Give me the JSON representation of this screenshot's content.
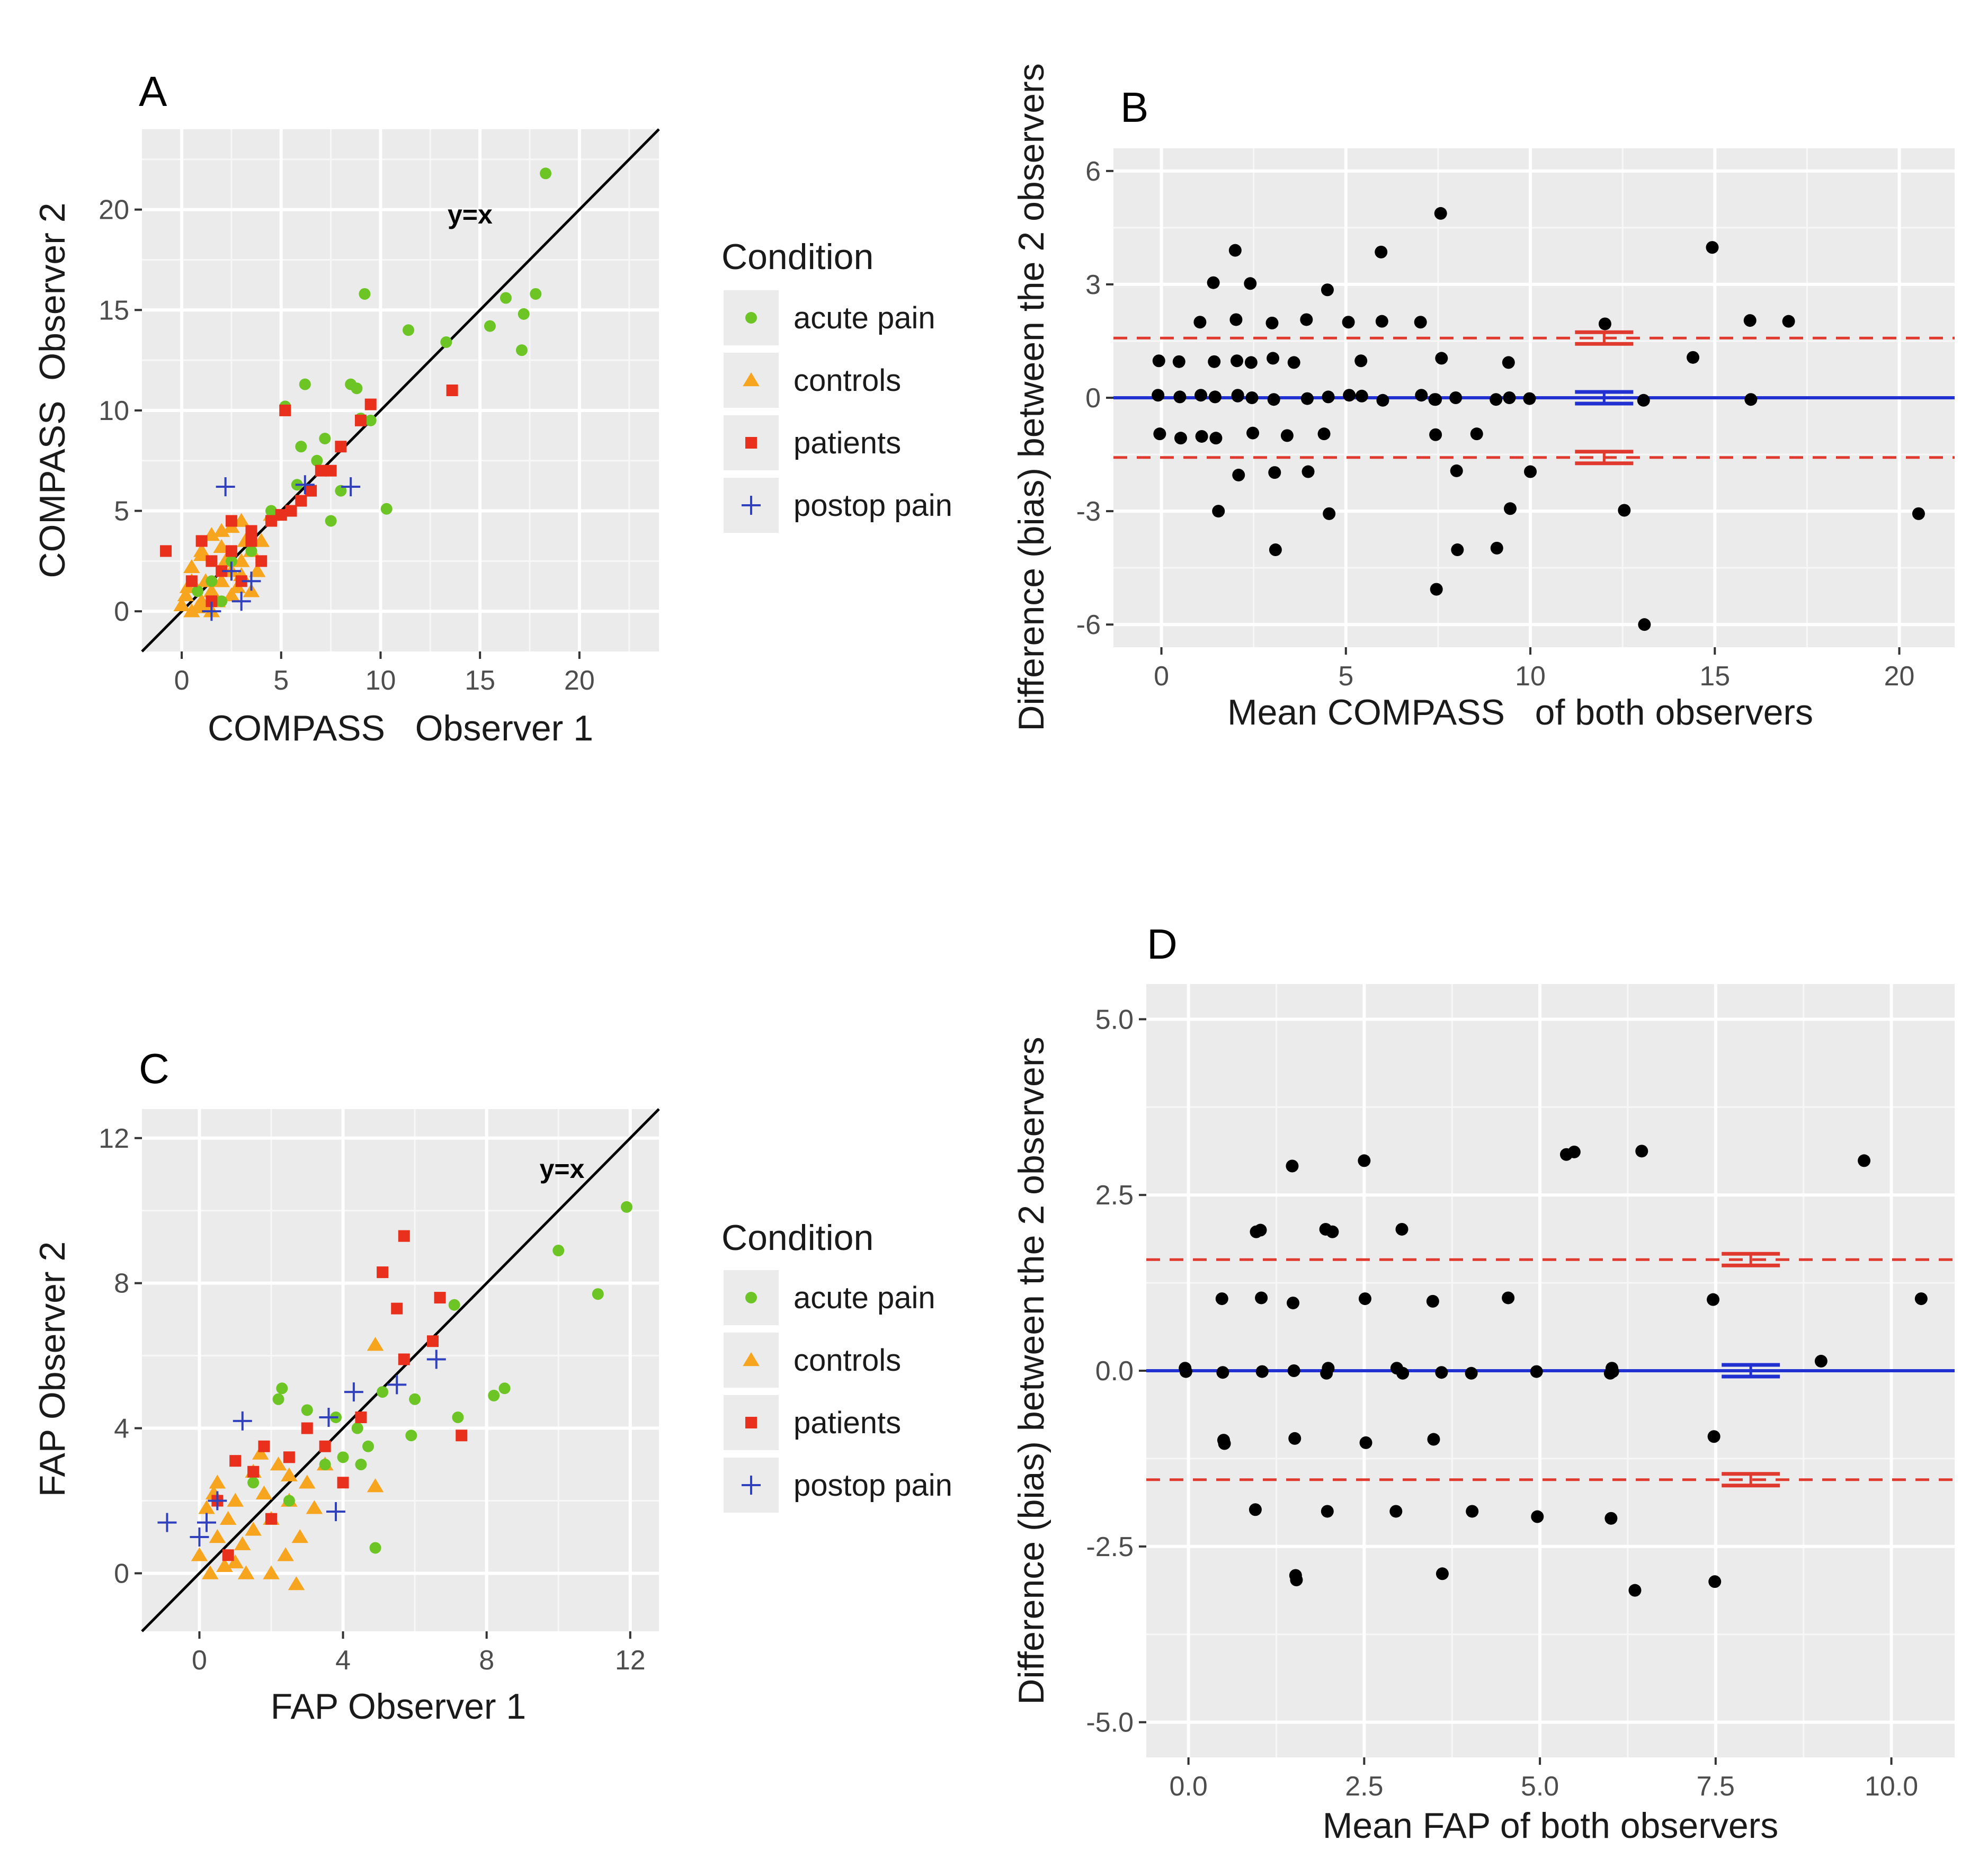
{
  "colors": {
    "acute_pain": "#6cc524",
    "controls": "#f7a51f",
    "patients": "#e8301c",
    "postop_pain": "#3140bd",
    "bias_line": "#2130d0",
    "loa_line": "#e03a2e",
    "panel_bg": "#ebebeb",
    "grid": "#ffffff"
  },
  "legend_top": {
    "title": "Condition",
    "items": [
      {
        "label": "acute pain",
        "key": "acute_pain",
        "icon": "circle-marker-icon"
      },
      {
        "label": "controls",
        "key": "controls",
        "icon": "triangle-marker-icon"
      },
      {
        "label": "patients",
        "key": "patients",
        "icon": "square-marker-icon"
      },
      {
        "label": "postop pain",
        "key": "postop_pain",
        "icon": "plus-marker-icon"
      }
    ]
  },
  "legend_bottom": {
    "title": "Condition",
    "items": [
      {
        "label": "acute pain",
        "key": "acute_pain",
        "icon": "circle-marker-icon"
      },
      {
        "label": "controls",
        "key": "controls",
        "icon": "triangle-marker-icon"
      },
      {
        "label": "patients",
        "key": "patients",
        "icon": "square-marker-icon"
      },
      {
        "label": "postop pain",
        "key": "postop_pain",
        "icon": "plus-marker-icon"
      }
    ]
  },
  "chart_data": [
    {
      "id": "A",
      "type": "scatter",
      "letter": "A",
      "xlabel": "COMPASS   Observer 1",
      "ylabel": "COMPASS  Observer 2",
      "xlim": [
        -2,
        24
      ],
      "ylim": [
        -2,
        24
      ],
      "xticks": [
        0,
        5,
        10,
        15,
        20
      ],
      "xtick_labels": [
        "0",
        "5",
        "10",
        "15",
        "20"
      ],
      "yticks": [
        0,
        5,
        10,
        15,
        20
      ],
      "ytick_labels": [
        "0",
        "5",
        "10",
        "15",
        "20"
      ],
      "identity_line": true,
      "annotation": {
        "text": "y=x",
        "x": 14.5,
        "y": 19.3
      },
      "series": [
        {
          "name": "acute pain",
          "key": "acute_pain",
          "marker": "circle",
          "x": [
            18.3,
            9.2,
            11.4,
            13.3,
            16.3,
            17.8,
            15.5,
            17.2,
            17.1,
            6.2,
            8.5,
            8.8,
            9.5,
            5.2,
            6.0,
            7.5,
            10.3,
            6.8,
            8.0,
            7.2,
            9.0,
            5.8,
            4.5,
            3.5,
            2.5,
            1.5,
            0.8,
            2.0
          ],
          "y": [
            21.8,
            15.8,
            14.0,
            13.4,
            15.6,
            15.8,
            14.2,
            14.8,
            13.0,
            11.3,
            11.3,
            11.1,
            9.5,
            10.2,
            8.2,
            4.5,
            5.1,
            7.5,
            6.0,
            8.6,
            9.6,
            6.3,
            5.0,
            3.0,
            2.5,
            1.5,
            1.0,
            0.5
          ]
        },
        {
          "name": "controls",
          "key": "controls",
          "marker": "triangle",
          "x": [
            0.5,
            1.0,
            1.5,
            2.0,
            2.5,
            3.0,
            3.5,
            4.0,
            0.2,
            0.8,
            1.2,
            1.8,
            2.2,
            2.8,
            3.2,
            3.8,
            0.0,
            0.5,
            1.0,
            1.5,
            2.0,
            2.5,
            3.0,
            1.0,
            2.0,
            3.0,
            0.5,
            1.5,
            2.5,
            3.5,
            4.5,
            0.3,
            1.3
          ],
          "y": [
            0.0,
            0.5,
            1.0,
            1.5,
            2.0,
            2.5,
            3.0,
            3.5,
            0.8,
            0.2,
            1.5,
            0.5,
            2.5,
            1.2,
            3.5,
            2.0,
            0.3,
            1.5,
            2.8,
            0.0,
            3.2,
            0.8,
            4.5,
            3.0,
            4.0,
            1.8,
            2.2,
            3.8,
            4.2,
            1.0,
            4.8,
            1.2,
            0.3
          ]
        },
        {
          "name": "patients",
          "key": "patients",
          "marker": "square",
          "x": [
            13.6,
            5.2,
            9.5,
            8.0,
            7.5,
            9.0,
            6.5,
            5.5,
            4.5,
            3.5,
            2.5,
            1.5,
            0.5,
            -0.8,
            1.0,
            2.0,
            3.0,
            4.0,
            5.0,
            6.0,
            7.0,
            2.5,
            1.5,
            3.5
          ],
          "y": [
            11.0,
            10.0,
            10.3,
            8.2,
            7.0,
            9.5,
            6.0,
            5.0,
            4.5,
            4.0,
            3.0,
            2.5,
            1.5,
            3.0,
            3.5,
            2.0,
            1.5,
            2.5,
            4.8,
            5.5,
            7.0,
            4.5,
            0.5,
            3.5
          ]
        },
        {
          "name": "postop pain",
          "key": "postop_pain",
          "marker": "plus",
          "x": [
            2.2,
            8.5,
            6.2,
            3.5,
            3.0,
            1.5,
            2.5
          ],
          "y": [
            6.2,
            6.2,
            6.3,
            1.5,
            0.5,
            0.0,
            2.0
          ]
        }
      ]
    },
    {
      "id": "B",
      "type": "scatter",
      "letter": "B",
      "xlabel": "Mean COMPASS   of both observers",
      "ylabel": "Difference (bias) between the 2 observers",
      "xlim": [
        -1.3,
        21.5
      ],
      "ylim": [
        -6.6,
        6.6
      ],
      "xticks": [
        0,
        5,
        10,
        15,
        20
      ],
      "xtick_labels": [
        "0",
        "5",
        "10",
        "15",
        "20"
      ],
      "yticks": [
        -6,
        -3,
        0,
        3,
        6
      ],
      "ytick_labels": [
        "-6",
        "-3",
        "0",
        "3",
        "6"
      ],
      "bias": 0.0,
      "upper_loa": 1.58,
      "lower_loa": -1.58,
      "ci_x": 12.0,
      "points": {
        "x": [
          0,
          0,
          0,
          0.5,
          0.5,
          0.5,
          1.0,
          1.0,
          1.0,
          1.5,
          1.5,
          1.5,
          1.5,
          2.0,
          2.0,
          2.0,
          2.0,
          2.0,
          2.5,
          2.5,
          2.5,
          2.5,
          3.0,
          3.0,
          3.0,
          3.0,
          3.5,
          3.5,
          4.0,
          4.0,
          4.0,
          4.5,
          4.5,
          4.5,
          5.0,
          5.0,
          5.5,
          5.5,
          6.0,
          6.0,
          6.0,
          7.0,
          7.0,
          7.5,
          7.5,
          7.5,
          7.5,
          7.5,
          8.0,
          8.0,
          8.0,
          8.5,
          9.0,
          9.0,
          9.5,
          9.5,
          9.5,
          10.0,
          10.0,
          12.0,
          12.5,
          13.0,
          13.0,
          14.5,
          15.0,
          16.0,
          16.0,
          17.0,
          20.5,
          1.5,
          2.0,
          3.0,
          4.5,
          7.5
        ],
        "y": [
          0,
          1.0,
          -1.0,
          1.0,
          0,
          -1.0,
          2.0,
          0,
          -1.0,
          3.0,
          1.0,
          0,
          -1.0,
          3.9,
          2.0,
          1.0,
          0,
          -2.0,
          3.0,
          1.0,
          0,
          -1.0,
          2.0,
          1.0,
          0,
          -2.0,
          1.0,
          -1.0,
          2.0,
          0,
          -2.0,
          2.9,
          0,
          -3.0,
          2.0,
          0,
          1.0,
          0,
          3.9,
          2.0,
          0,
          2.0,
          0,
          4.9,
          1.0,
          0,
          -1.0,
          -5.0,
          0,
          -2.0,
          -4.0,
          -1.0,
          0,
          -4.0,
          1.0,
          0,
          -3.0,
          0,
          -2.0,
          2.0,
          -3.0,
          0,
          -6.0,
          1.0,
          4.0,
          2.0,
          0,
          2.0,
          -3.0,
          -3.0,
          0,
          -4.0,
          -1.0,
          0
        ]
      }
    },
    {
      "id": "C",
      "type": "scatter",
      "letter": "C",
      "xlabel": "FAP Observer 1",
      "ylabel": "FAP Observer 2",
      "xlim": [
        -1.6,
        12.8
      ],
      "ylim": [
        -1.6,
        12.8
      ],
      "xticks": [
        0,
        4,
        8,
        12
      ],
      "xtick_labels": [
        "0",
        "4",
        "8",
        "12"
      ],
      "yticks": [
        0,
        4,
        8,
        12
      ],
      "ytick_labels": [
        "0",
        "4",
        "8",
        "12"
      ],
      "identity_line": true,
      "annotation": {
        "text": "y=x",
        "x": 10.1,
        "y": 10.9
      },
      "series": [
        {
          "name": "acute pain",
          "key": "acute_pain",
          "marker": "circle",
          "x": [
            11.9,
            10.0,
            11.1,
            8.5,
            8.2,
            7.2,
            7.1,
            6.0,
            5.9,
            4.9,
            4.7,
            4.4,
            2.3,
            2.2,
            3.0,
            3.5,
            4.0,
            1.5,
            2.5,
            3.8,
            4.5,
            5.1
          ],
          "y": [
            10.1,
            8.9,
            7.7,
            5.1,
            4.9,
            4.3,
            7.4,
            4.8,
            3.8,
            0.7,
            3.5,
            4.0,
            5.1,
            4.8,
            4.5,
            3.0,
            3.2,
            2.5,
            2.0,
            4.3,
            3.0,
            5.0
          ]
        },
        {
          "name": "controls",
          "key": "controls",
          "marker": "triangle",
          "x": [
            4.9,
            4.9,
            3.0,
            2.5,
            2.0,
            1.5,
            1.0,
            0.5,
            0.0,
            0.3,
            0.8,
            1.2,
            1.8,
            2.2,
            2.8,
            3.2,
            0.5,
            1.0,
            1.5,
            2.0,
            2.5,
            2.7,
            0.2,
            0.7,
            1.7,
            2.4,
            3.5,
            0.4,
            1.3
          ],
          "y": [
            6.3,
            2.4,
            2.5,
            2.0,
            1.5,
            2.8,
            2.0,
            1.0,
            0.5,
            0.0,
            1.5,
            0.8,
            2.2,
            3.0,
            1.0,
            1.8,
            2.5,
            0.3,
            1.2,
            0.0,
            2.7,
            -0.3,
            1.8,
            0.2,
            3.3,
            0.5,
            3.0,
            2.2,
            0.0
          ]
        },
        {
          "name": "patients",
          "key": "patients",
          "marker": "square",
          "x": [
            5.7,
            5.1,
            5.5,
            6.7,
            6.5,
            7.3,
            5.7,
            4.5,
            3.5,
            2.5,
            1.5,
            0.5,
            1.0,
            2.0,
            3.0,
            4.0,
            0.8,
            1.8
          ],
          "y": [
            9.3,
            8.3,
            7.3,
            7.6,
            6.4,
            3.8,
            5.9,
            4.3,
            3.5,
            3.2,
            2.8,
            2.0,
            3.1,
            1.5,
            4.0,
            2.5,
            0.5,
            3.5
          ]
        },
        {
          "name": "postop pain",
          "key": "postop_pain",
          "marker": "plus",
          "x": [
            1.2,
            4.3,
            3.6,
            3.8,
            6.6,
            5.5,
            -0.9,
            0.2,
            0.5,
            0.0
          ],
          "y": [
            4.2,
            5.0,
            4.3,
            1.7,
            5.9,
            5.2,
            1.4,
            1.4,
            2.0,
            1.0
          ]
        }
      ]
    },
    {
      "id": "D",
      "type": "scatter",
      "letter": "D",
      "xlabel": "Mean FAP of both observers",
      "ylabel": "Difference (bias) between the 2 observers",
      "xlim": [
        -0.6,
        10.9
      ],
      "ylim": [
        -5.5,
        5.5
      ],
      "xticks": [
        0,
        2.5,
        5.0,
        7.5,
        10.0
      ],
      "xtick_labels": [
        "0.0",
        "2.5",
        "5.0",
        "7.5",
        "10.0"
      ],
      "yticks": [
        -5.0,
        -2.5,
        0,
        2.5,
        5.0
      ],
      "ytick_labels": [
        "-5.0",
        "-2.5",
        "0.0",
        "2.5",
        "5.0"
      ],
      "bias": 0.0,
      "upper_loa": 1.58,
      "lower_loa": -1.55,
      "ci_x": 8.0,
      "points": {
        "x": [
          0,
          0,
          0.5,
          0.5,
          0.5,
          0.5,
          1.0,
          1.0,
          1.0,
          1.0,
          1.0,
          1.5,
          1.5,
          1.5,
          1.5,
          1.5,
          1.5,
          2.0,
          2.0,
          2.0,
          2.0,
          2.0,
          2.5,
          2.5,
          2.5,
          3.0,
          3.0,
          3.0,
          3.0,
          3.5,
          3.5,
          3.6,
          3.6,
          4.0,
          4.0,
          4.5,
          5.0,
          5.0,
          5.4,
          5.5,
          6.0,
          6.0,
          6.0,
          6.0,
          6.4,
          6.4,
          7.5,
          7.5,
          7.5,
          9.0,
          9.6,
          10.4
        ],
        "y": [
          0,
          0,
          1.0,
          0,
          -1.0,
          -1.0,
          2.0,
          1.0,
          0,
          -2.0,
          2.0,
          2.9,
          1.0,
          0,
          -1.0,
          -2.9,
          -3.0,
          2.0,
          2.0,
          0,
          -2.0,
          0,
          3.0,
          1.0,
          -1.0,
          2.0,
          0,
          -2.0,
          0,
          1.0,
          -1.0,
          0,
          -2.9,
          0,
          -2.0,
          1.0,
          0,
          -2.1,
          3.1,
          3.1,
          0,
          -2.1,
          0,
          0,
          3.1,
          -3.1,
          1.0,
          -0.9,
          -3.0,
          0.1,
          3.0,
          1.0
        ]
      }
    }
  ]
}
